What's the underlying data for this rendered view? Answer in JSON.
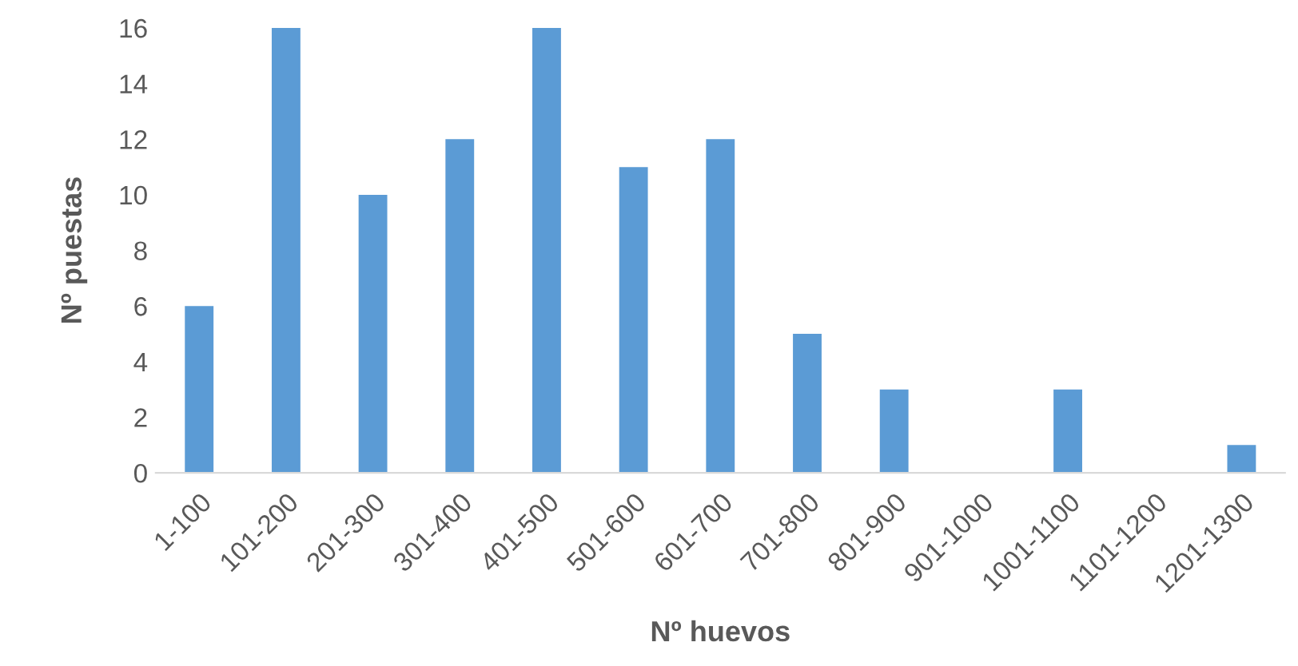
{
  "chart_data": {
    "type": "bar",
    "xlabel": "Nº huevos",
    "ylabel": "Nº puestas",
    "categories": [
      "1-100",
      "101-200",
      "201-300",
      "301-400",
      "401-500",
      "501-600",
      "601-700",
      "701-800",
      "801-900",
      "901-1000",
      "1001-1100",
      "1101-1200",
      "1201-1300"
    ],
    "values": [
      6,
      16,
      10,
      12,
      16,
      11,
      12,
      5,
      3,
      0,
      3,
      0,
      1
    ],
    "color": "#5b9bd5",
    "ylim": [
      0,
      16
    ],
    "yticks": [
      0,
      2,
      4,
      6,
      8,
      10,
      12,
      14,
      16
    ],
    "grid": false,
    "legend": false
  }
}
